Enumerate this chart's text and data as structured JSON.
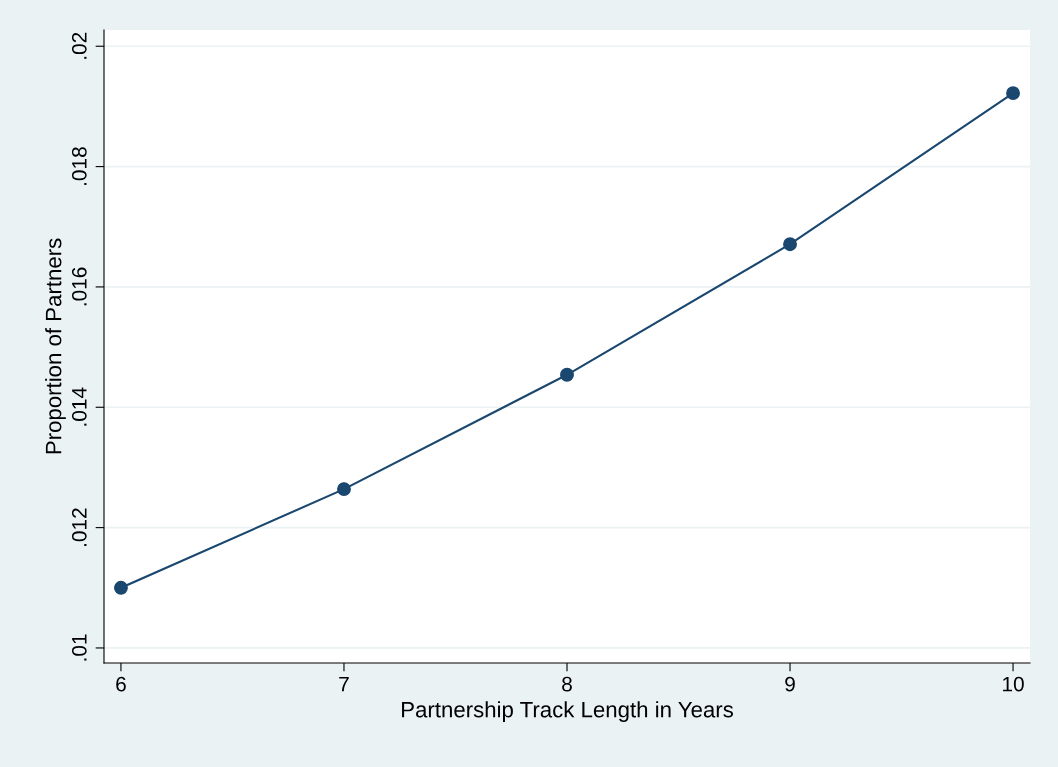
{
  "chart_data": {
    "type": "line",
    "xlabel": "Partnership Track Length in Years",
    "ylabel": "Proportion of Partners",
    "x": [
      6,
      7,
      8,
      9,
      10
    ],
    "series": [
      {
        "color": "#1a476f",
        "values": [
          0.011,
          0.01264,
          0.01454,
          0.01671,
          0.01922
        ]
      }
    ],
    "xlim": [
      5.924,
      10.076
    ],
    "xticks": [
      6,
      7,
      8,
      9,
      10
    ],
    "ylim": [
      0.00975,
      0.02027
    ],
    "yticks": [
      {
        "value": 0.01,
        "label": ".01"
      },
      {
        "value": 0.012,
        "label": ".012"
      },
      {
        "value": 0.014,
        "label": ".014"
      },
      {
        "value": 0.016,
        "label": ".016"
      },
      {
        "value": 0.018,
        "label": ".018"
      },
      {
        "value": 0.02,
        "label": ".02"
      }
    ],
    "grid": "y",
    "marker": "circle",
    "line_style": "solid"
  }
}
